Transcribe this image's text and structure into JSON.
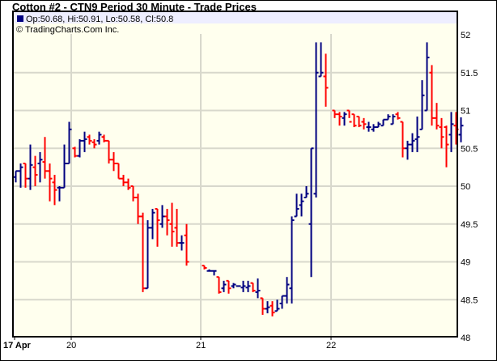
{
  "title": "Cotton #2 - CTN9 Period 30 Minute - Trade Prices",
  "legend": {
    "ohlc": "Op:50.68, Hi:50.91, Lo:50.58, Cl:50.8",
    "copyright": "© TradingCharts.Com Inc."
  },
  "colors": {
    "up": "#000080",
    "down": "#ff0000",
    "plot_bg": "#ffffee",
    "legend_bg": "#eeeeff",
    "grid": "#d8d8cc"
  },
  "chart_data": {
    "type": "ohlc",
    "ylim": [
      48,
      52
    ],
    "yticks": [
      "48",
      "48.5",
      "49",
      "49.5",
      "50",
      "50.5",
      "51",
      "51.5",
      "52"
    ],
    "grid": true,
    "days": [
      {
        "label": "17 Apr",
        "bars": [
          [
            50.12,
            50.2,
            50.05,
            50.2
          ],
          [
            50.2,
            50.3,
            49.98,
            50.25
          ],
          [
            50.3,
            50.3,
            49.98,
            50.1
          ],
          [
            50.1,
            50.55,
            49.95,
            50.28
          ],
          [
            50.25,
            50.4,
            50.0,
            50.15
          ],
          [
            50.3,
            50.45,
            50.05,
            50.35
          ],
          [
            50.32,
            50.65,
            50.1,
            50.2
          ],
          [
            50.2,
            50.3,
            49.8,
            50.1
          ],
          [
            50.05,
            50.15,
            49.75,
            49.95
          ],
          [
            49.98,
            50.0,
            49.8,
            49.98
          ],
          [
            49.98,
            50.55,
            49.98,
            50.3
          ],
          [
            50.3,
            50.85,
            50.3,
            50.75
          ]
        ]
      },
      {
        "label": "20",
        "bars": [
          [
            50.5,
            50.52,
            50.38,
            50.4
          ],
          [
            50.4,
            50.62,
            50.38,
            50.6
          ],
          [
            50.6,
            50.72,
            50.45,
            50.62
          ],
          [
            50.65,
            50.68,
            50.55,
            50.6
          ],
          [
            50.58,
            50.62,
            50.5,
            50.55
          ],
          [
            50.6,
            50.72,
            50.55,
            50.68
          ],
          [
            50.65,
            50.68,
            50.58,
            50.6
          ],
          [
            50.6,
            50.6,
            50.3,
            50.35
          ],
          [
            50.35,
            50.45,
            50.2,
            50.3
          ],
          [
            50.3,
            50.3,
            50.1,
            50.1
          ],
          [
            50.1,
            50.15,
            50.0,
            50.05
          ],
          [
            50.05,
            50.1,
            49.95,
            49.98
          ],
          [
            50.0,
            50.0,
            49.8,
            49.85
          ],
          [
            49.85,
            49.9,
            49.5,
            49.6
          ],
          [
            49.6,
            49.65,
            48.6,
            48.65
          ],
          [
            48.65,
            49.55,
            48.65,
            49.45
          ],
          [
            49.45,
            49.7,
            49.3,
            49.65
          ],
          [
            49.7,
            49.7,
            49.2,
            49.55
          ],
          [
            49.5,
            49.75,
            49.45,
            49.6
          ],
          [
            49.6,
            49.7,
            49.35,
            49.55
          ],
          [
            49.5,
            49.78,
            49.2,
            49.4
          ],
          [
            49.45,
            49.7,
            49.2,
            49.25
          ],
          [
            49.25,
            49.35,
            49.15,
            49.25
          ],
          [
            49.35,
            49.5,
            48.95,
            49.0
          ]
        ]
      },
      {
        "label": "21",
        "bars": [
          [
            48.95,
            48.95,
            48.9,
            48.92
          ],
          [
            48.88,
            48.9,
            48.88,
            48.88
          ],
          [
            48.88,
            48.88,
            48.82,
            48.88
          ],
          [
            48.8,
            48.8,
            48.58,
            48.6
          ],
          [
            48.65,
            48.75,
            48.6,
            48.7
          ],
          [
            48.75,
            48.75,
            48.58,
            48.65
          ],
          [
            48.68,
            48.72,
            48.65,
            48.7
          ],
          [
            48.68,
            48.68,
            48.68,
            48.68
          ],
          [
            48.66,
            48.75,
            48.6,
            48.68
          ],
          [
            48.66,
            48.75,
            48.6,
            48.68
          ],
          [
            48.72,
            48.72,
            48.6,
            48.62
          ],
          [
            48.6,
            48.78,
            48.52,
            48.62
          ],
          [
            48.52,
            48.52,
            48.3,
            48.38
          ],
          [
            48.38,
            48.48,
            48.32,
            48.4
          ],
          [
            48.42,
            48.48,
            48.28,
            48.33
          ],
          [
            48.35,
            48.5,
            48.35,
            48.38
          ],
          [
            48.45,
            48.55,
            48.38,
            48.55
          ],
          [
            48.55,
            48.8,
            48.45,
            48.7
          ],
          [
            48.65,
            49.6,
            48.45,
            49.55
          ],
          [
            49.6,
            49.9,
            49.6,
            49.7
          ],
          [
            49.75,
            49.9,
            49.6,
            49.8
          ],
          [
            49.85,
            50.0,
            49.85,
            49.9
          ],
          [
            49.5,
            50.5,
            48.8,
            50.5
          ],
          [
            49.9,
            51.9,
            49.85,
            51.5
          ],
          [
            51.45,
            51.9,
            51.45,
            51.5
          ],
          [
            51.45,
            51.75,
            51.05,
            51.3
          ]
        ]
      },
      {
        "label": "22",
        "bars": [
          [
            51.0,
            51.0,
            50.9,
            50.95
          ],
          [
            50.95,
            50.98,
            50.8,
            50.92
          ],
          [
            50.9,
            50.98,
            50.8,
            50.95
          ],
          [
            51.0,
            51.0,
            50.9,
            50.85
          ],
          [
            50.95,
            50.95,
            50.78,
            50.8
          ],
          [
            50.92,
            50.92,
            50.78,
            50.8
          ],
          [
            50.85,
            50.9,
            50.75,
            50.82
          ],
          [
            50.78,
            50.85,
            50.72,
            50.78
          ],
          [
            50.75,
            50.82,
            50.72,
            50.78
          ],
          [
            50.78,
            50.85,
            50.78,
            50.82
          ],
          [
            50.8,
            50.88,
            50.8,
            50.88
          ],
          [
            50.88,
            50.95,
            50.88,
            50.92
          ],
          [
            50.82,
            50.95,
            50.82,
            50.92
          ],
          [
            50.95,
            50.98,
            50.88,
            50.9
          ],
          [
            50.85,
            50.85,
            50.38,
            50.5
          ],
          [
            50.5,
            50.6,
            50.35,
            50.55
          ],
          [
            50.55,
            50.7,
            50.45,
            50.6
          ],
          [
            50.62,
            50.92,
            50.45,
            50.65
          ],
          [
            50.75,
            51.4,
            50.75,
            51.2
          ],
          [
            51.0,
            51.9,
            51.0,
            51.7
          ],
          [
            51.5,
            51.6,
            50.8,
            50.9
          ],
          [
            50.9,
            51.1,
            50.75,
            50.8
          ],
          [
            50.78,
            50.9,
            50.5,
            50.65
          ],
          [
            50.78,
            50.8,
            50.25,
            50.55
          ],
          [
            50.68,
            50.98,
            50.45,
            50.82
          ],
          [
            50.8,
            50.98,
            50.55,
            50.75
          ],
          [
            50.68,
            50.91,
            50.58,
            50.8
          ]
        ]
      }
    ]
  }
}
